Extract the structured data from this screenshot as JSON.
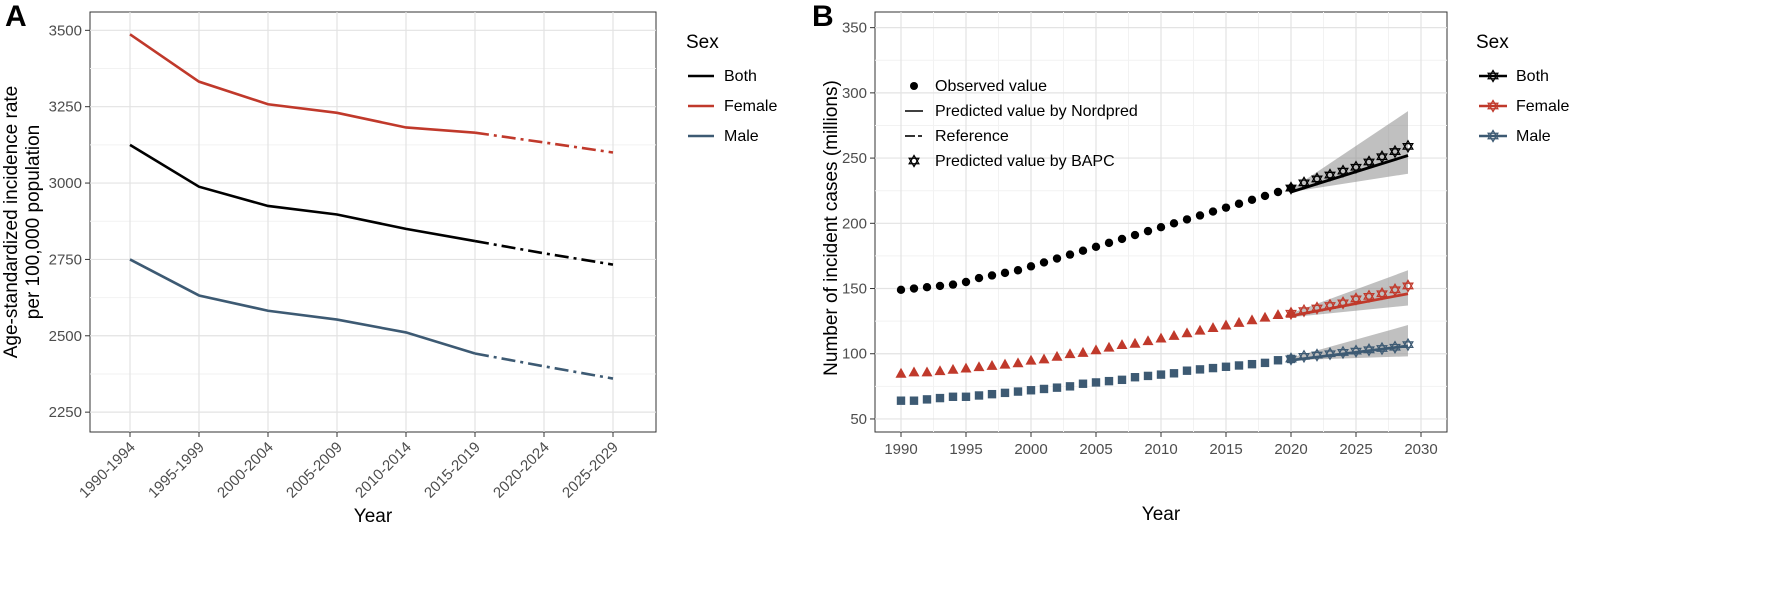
{
  "chart_data": [
    {
      "panel": "A",
      "type": "line",
      "xlabel": "Year",
      "ylabel": [
        "Age-standardized incidence rate",
        "per 100,000 population"
      ],
      "categories": [
        "1990-1994",
        "1995-1999",
        "2000-2004",
        "2005-2009",
        "2010-2014",
        "2015-2019",
        "2020-2024",
        "2025-2029"
      ],
      "yticks": [
        2250,
        2500,
        2750,
        3000,
        3250,
        3500
      ],
      "ylim": [
        2185,
        3560
      ],
      "grid": true,
      "legend": {
        "title": "Sex",
        "position": "right"
      },
      "series": [
        {
          "name": "Both",
          "color": "#000000",
          "values": [
            3125,
            2988,
            2925,
            2897,
            2850,
            2810,
            2770,
            2733
          ],
          "observed_until_index": 5
        },
        {
          "name": "Female",
          "color": "#c0392b",
          "values": [
            3487,
            3332,
            3258,
            3230,
            3182,
            3165,
            3133,
            3100
          ],
          "observed_until_index": 5
        },
        {
          "name": "Male",
          "color": "#3d5a73",
          "values": [
            2750,
            2632,
            2582,
            2553,
            2511,
            2442,
            2400,
            2360
          ],
          "observed_until_index": 5
        }
      ]
    },
    {
      "panel": "B",
      "type": "scatter",
      "xlabel": "Year",
      "ylabel": "Number of incident cases (millions)",
      "xticks": [
        1990,
        1995,
        2000,
        2005,
        2010,
        2015,
        2020,
        2025,
        2030
      ],
      "yticks": [
        50,
        100,
        150,
        200,
        250,
        300,
        350
      ],
      "xlim": [
        1988,
        2032
      ],
      "ylim": [
        40,
        362
      ],
      "grid": true,
      "legend": {
        "title": "Sex",
        "position": "right"
      },
      "inner_legend": [
        {
          "symbol": "dot",
          "label": "Observed value"
        },
        {
          "symbol": "line",
          "label": "Predicted value by Nordpred"
        },
        {
          "symbol": "dash",
          "label": "Reference"
        },
        {
          "symbol": "star",
          "label": "Predicted value by BAPC"
        }
      ],
      "observed": {
        "years": [
          1990,
          1991,
          1992,
          1993,
          1994,
          1995,
          1996,
          1997,
          1998,
          1999,
          2000,
          2001,
          2002,
          2003,
          2004,
          2005,
          2006,
          2007,
          2008,
          2009,
          2010,
          2011,
          2012,
          2013,
          2014,
          2015,
          2016,
          2017,
          2018,
          2019,
          2020
        ],
        "Both": [
          149,
          150,
          151,
          152,
          153,
          155,
          158,
          160,
          162,
          164,
          167,
          170,
          173,
          176,
          179,
          182,
          185,
          188,
          191,
          194,
          197,
          200,
          203,
          206,
          209,
          212,
          215,
          218,
          221,
          224,
          227
        ],
        "Female": [
          85,
          86,
          86,
          87,
          88,
          89,
          90,
          91,
          92,
          93,
          95,
          96,
          98,
          100,
          101,
          103,
          105,
          107,
          108,
          110,
          112,
          114,
          116,
          118,
          120,
          122,
          124,
          126,
          128,
          130,
          131
        ],
        "Male": [
          64,
          64,
          65,
          66,
          67,
          67,
          68,
          69,
          70,
          71,
          72,
          73,
          74,
          75,
          77,
          78,
          79,
          80,
          82,
          83,
          84,
          85,
          87,
          88,
          89,
          90,
          91,
          92,
          93,
          95,
          96
        ]
      },
      "nordpred": {
        "years": [
          2020,
          2029
        ],
        "Both": [
          224,
          252
        ],
        "Female": [
          129,
          146
        ],
        "Male": [
          95,
          106
        ]
      },
      "bapc": {
        "years": [
          2020,
          2021,
          2022,
          2023,
          2024,
          2025,
          2026,
          2027,
          2028,
          2029
        ],
        "Both": [
          227,
          231,
          234,
          237,
          240,
          243,
          247,
          251,
          255,
          259
        ],
        "Female": [
          131,
          133,
          135,
          137,
          139,
          142,
          144,
          146,
          149,
          152
        ],
        "Male": [
          96,
          98,
          99,
          100,
          101,
          102,
          103,
          104,
          105,
          107
        ]
      },
      "bands": {
        "years": [
          2020,
          2029
        ],
        "Both": {
          "lo": [
            224,
            238
          ],
          "hi": [
            226,
            286
          ]
        },
        "Female": {
          "lo": [
            128,
            137
          ],
          "hi": [
            131,
            164
          ]
        },
        "Male": {
          "lo": [
            95,
            98
          ],
          "hi": [
            97,
            122
          ]
        }
      },
      "series": [
        {
          "name": "Both",
          "color": "#000000",
          "marker": "circle"
        },
        {
          "name": "Female",
          "color": "#c0392b",
          "marker": "triangle"
        },
        {
          "name": "Male",
          "color": "#3d5a73",
          "marker": "square"
        }
      ]
    }
  ]
}
